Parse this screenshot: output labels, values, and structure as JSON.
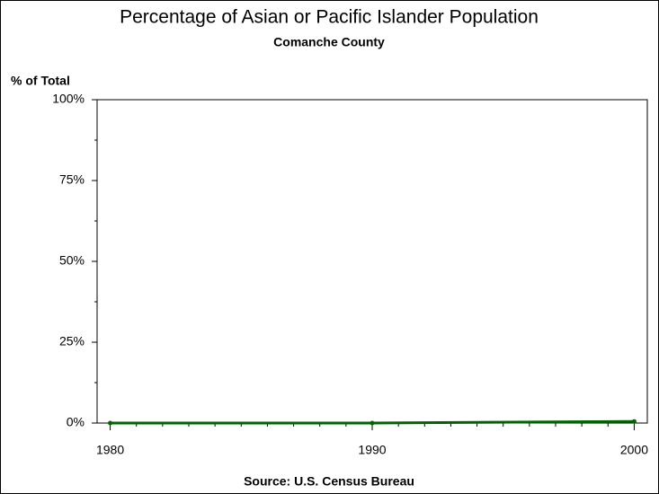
{
  "chart_data": {
    "type": "line",
    "title": "Percentage of Asian or Pacific Islander Population",
    "subtitle": "Comanche County",
    "y_label": "% of Total",
    "source": "Source: U.S. Census Bureau",
    "x": [
      1980,
      1990,
      2000
    ],
    "series": [
      {
        "name": "Comanche County",
        "color": "#006400",
        "values": [
          0,
          0,
          0.5
        ]
      }
    ],
    "xlim": [
      1979.5,
      2000.5
    ],
    "xticks": [
      1980,
      1990,
      2000
    ],
    "ylim": [
      0,
      100
    ],
    "yticks": [
      {
        "value": 0,
        "label": "0%"
      },
      {
        "value": 25,
        "label": "25%"
      },
      {
        "value": 50,
        "label": "50%"
      },
      {
        "value": 75,
        "label": "75%"
      },
      {
        "value": 100,
        "label": "100%"
      }
    ]
  }
}
